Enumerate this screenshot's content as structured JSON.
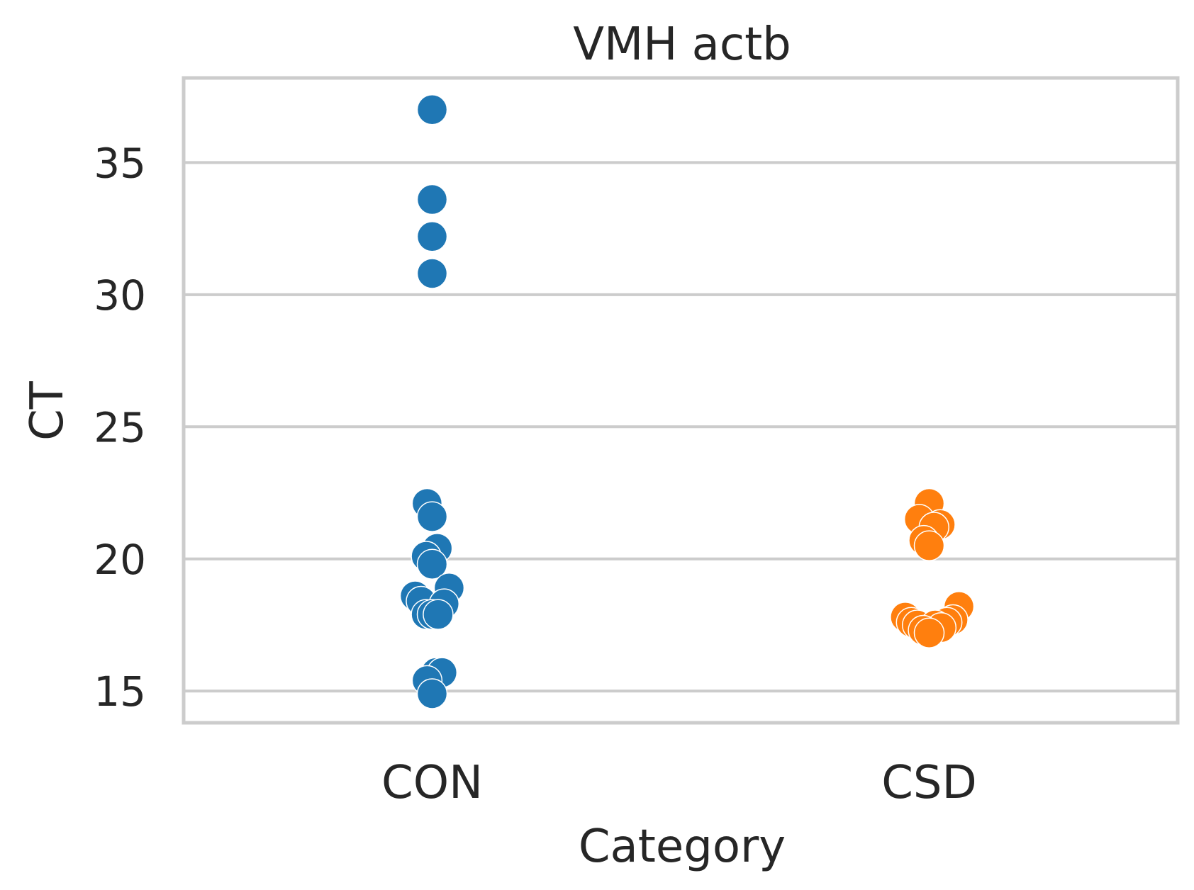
{
  "chart_data": {
    "type": "scatter",
    "subtype": "swarm",
    "title": "VMH actb",
    "xlabel": "Category",
    "ylabel": "CT",
    "categories": [
      "CON",
      "CSD"
    ],
    "yticks": [
      "15",
      "20",
      "25",
      "30",
      "35"
    ],
    "ylim": [
      13.8,
      38.2
    ],
    "grid": true,
    "colors": {
      "CON": "#1f77b4",
      "CSD": "#ff7f0e",
      "grid": "#cccccc",
      "text": "#262626"
    },
    "series": [
      {
        "category": "CON",
        "values": [
          37.0,
          33.6,
          32.2,
          30.8,
          22.1,
          21.6,
          20.4,
          20.1,
          19.8,
          18.9,
          18.6,
          18.4,
          18.3,
          17.9,
          17.9,
          17.9,
          15.7,
          15.7,
          15.4,
          14.9
        ],
        "offsets": [
          0,
          0,
          0,
          0,
          -0.17,
          0,
          0.17,
          -0.2,
          0,
          0.57,
          -0.57,
          -0.37,
          0.4,
          -0.2,
          0,
          0.2,
          0.13,
          0.33,
          -0.17,
          0
        ]
      },
      {
        "category": "CSD",
        "values": [
          22.1,
          21.5,
          21.3,
          21.2,
          20.7,
          20.5,
          18.2,
          17.8,
          17.7,
          17.6,
          17.6,
          17.5,
          17.5,
          17.4,
          17.3,
          17.2
        ],
        "offsets": [
          0,
          -0.33,
          0.37,
          0.16,
          -0.18,
          0,
          1.0,
          -0.8,
          0.8,
          -0.6,
          0.6,
          -0.4,
          0.2,
          0.4,
          -0.2,
          0
        ]
      }
    ]
  }
}
